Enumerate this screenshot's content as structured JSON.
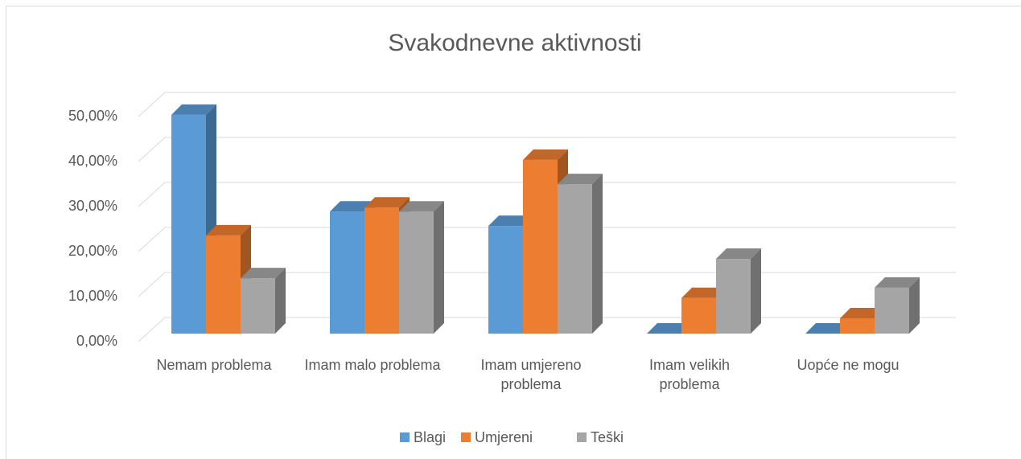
{
  "chart_data": {
    "type": "bar3d",
    "title": "Svakodnevne aktivnosti",
    "categories": [
      "Nemam problema",
      "Imam malo problema",
      "Imam umjereno problema",
      "Imam velikih problema",
      "Uopće ne mogu"
    ],
    "series": [
      {
        "name": "Blagi",
        "color": "#5b9bd5",
        "values": [
          48.6,
          27.1,
          23.9,
          0,
          0
        ]
      },
      {
        "name": "Umjereni",
        "color": "#ed7d31",
        "values": [
          21.8,
          28.0,
          38.6,
          7.9,
          3.4
        ]
      },
      {
        "name": "Teški",
        "color": "#a5a5a5",
        "values": [
          12.3,
          27.1,
          33.2,
          16.6,
          10.2
        ]
      }
    ],
    "ylim": [
      0,
      50
    ],
    "yticks": [
      {
        "value": 0,
        "label": "0,00%"
      },
      {
        "value": 10,
        "label": "10,00%"
      },
      {
        "value": 20,
        "label": "20,00%"
      },
      {
        "value": 30,
        "label": "30,00%"
      },
      {
        "value": 40,
        "label": "40,00%"
      },
      {
        "value": 50,
        "label": "50,00%"
      }
    ],
    "grid": true,
    "legend": "bottom"
  }
}
